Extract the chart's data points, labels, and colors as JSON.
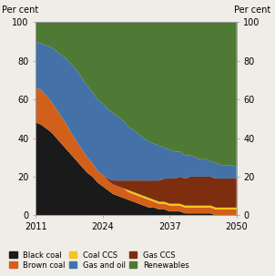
{
  "years": [
    2011,
    2012,
    2013,
    2014,
    2015,
    2016,
    2017,
    2018,
    2019,
    2020,
    2021,
    2022,
    2023,
    2024,
    2025,
    2026,
    2027,
    2028,
    2029,
    2030,
    2031,
    2032,
    2033,
    2034,
    2035,
    2036,
    2037,
    2038,
    2039,
    2040,
    2041,
    2042,
    2043,
    2044,
    2045,
    2046,
    2047,
    2048,
    2049,
    2050
  ],
  "black_coal": [
    48,
    47,
    45,
    43,
    40,
    37,
    34,
    31,
    28,
    25,
    22,
    20,
    17,
    15,
    13,
    11,
    10,
    9,
    8,
    7,
    6,
    5,
    4,
    4,
    3,
    3,
    2,
    2,
    2,
    1,
    1,
    1,
    1,
    1,
    1,
    0,
    0,
    0,
    0,
    0
  ],
  "brown_coal": [
    18,
    18,
    17,
    16,
    15,
    14,
    13,
    11,
    10,
    9,
    8,
    7,
    6,
    6,
    5,
    5,
    5,
    5,
    4,
    4,
    4,
    4,
    4,
    3,
    3,
    3,
    3,
    3,
    3,
    3,
    3,
    3,
    3,
    3,
    3,
    3,
    3,
    3,
    3,
    3
  ],
  "coal_ccs": [
    0,
    0,
    0,
    0,
    0,
    0,
    0,
    0,
    0,
    0,
    0,
    0,
    0,
    0,
    0,
    0,
    0,
    0,
    1,
    1,
    1,
    1,
    1,
    1,
    1,
    1,
    1,
    1,
    1,
    1,
    1,
    1,
    1,
    1,
    1,
    1,
    1,
    1,
    1,
    1
  ],
  "gas_ccs": [
    0,
    0,
    0,
    0,
    0,
    0,
    0,
    0,
    0,
    0,
    0,
    0,
    0,
    0,
    1,
    2,
    3,
    4,
    5,
    6,
    7,
    8,
    9,
    10,
    11,
    12,
    13,
    13,
    14,
    14,
    15,
    15,
    15,
    15,
    15,
    15,
    15,
    15,
    15,
    15
  ],
  "gas_and_oil": [
    24,
    24,
    26,
    28,
    30,
    32,
    34,
    36,
    37,
    37,
    37,
    37,
    37,
    37,
    36,
    35,
    33,
    31,
    28,
    26,
    24,
    22,
    20,
    19,
    18,
    16,
    15,
    14,
    13,
    12,
    11,
    10,
    9,
    9,
    8,
    8,
    7,
    7,
    7,
    6
  ],
  "renewables": [
    10,
    11,
    12,
    13,
    15,
    17,
    19,
    22,
    25,
    29,
    33,
    36,
    40,
    42,
    45,
    47,
    49,
    51,
    54,
    56,
    58,
    60,
    62,
    63,
    64,
    65,
    66,
    67,
    67,
    69,
    69,
    70,
    71,
    71,
    72,
    73,
    74,
    74,
    74,
    75
  ],
  "colors": {
    "black_coal": "#1a1a1a",
    "brown_coal": "#d2601a",
    "coal_ccs": "#f5c518",
    "gas_ccs": "#7d2e0e",
    "gas_and_oil": "#4472a8",
    "renewables": "#4e7a35"
  },
  "labels": {
    "black_coal": "Black coal",
    "brown_coal": "Brown coal",
    "coal_ccs": "Coal CCS",
    "gas_ccs": "Gas CCS",
    "gas_and_oil": "Gas and oil",
    "renewables": "Renewables"
  },
  "xlabel_ticks": [
    2011,
    2024,
    2037,
    2050
  ],
  "ylabel_left": "Per cent",
  "ylabel_right": "Per cent",
  "ylim": [
    0,
    100
  ],
  "yticks": [
    0,
    20,
    40,
    60,
    80,
    100
  ],
  "bg_color": "#f0ede8",
  "fig_bg": "#f0ede8"
}
